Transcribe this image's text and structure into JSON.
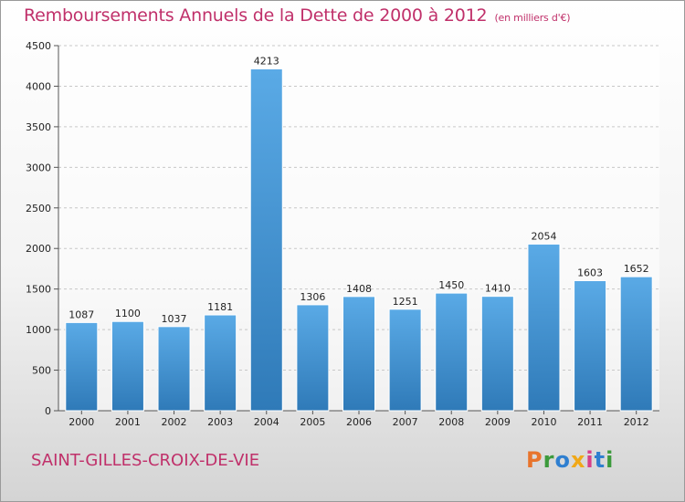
{
  "title": "Remboursements Annuels de la Dette de 2000 à 2012",
  "unit": "(en milliers d'€)",
  "city": "SAINT-GILLES-CROIX-DE-VIE",
  "brand": {
    "letters": [
      "P",
      "r",
      "o",
      "x",
      "i",
      "t",
      "i"
    ],
    "colors": [
      "#e8742c",
      "#3c9a3c",
      "#2f7fd0",
      "#f0a818",
      "#d63f8a",
      "#2f7fd0",
      "#3c9a3c"
    ]
  },
  "colors": {
    "bar_light": "#5aaae6",
    "bar_dark": "#2f7ab8",
    "accent": "#c0306a"
  },
  "chart_data": {
    "type": "bar",
    "title": "Remboursements Annuels de la Dette de 2000 à 2012",
    "xlabel": "",
    "ylabel": "",
    "categories": [
      "2000",
      "2001",
      "2002",
      "2003",
      "2004",
      "2005",
      "2006",
      "2007",
      "2008",
      "2009",
      "2010",
      "2011",
      "2012"
    ],
    "values": [
      1087,
      1100,
      1037,
      1181,
      4213,
      1306,
      1408,
      1251,
      1450,
      1410,
      2054,
      1603,
      1652
    ],
    "ylim": [
      0,
      4500
    ],
    "yticks": [
      0,
      500,
      1000,
      1500,
      2000,
      2500,
      3000,
      3500,
      4000,
      4500
    ],
    "grid": true
  }
}
